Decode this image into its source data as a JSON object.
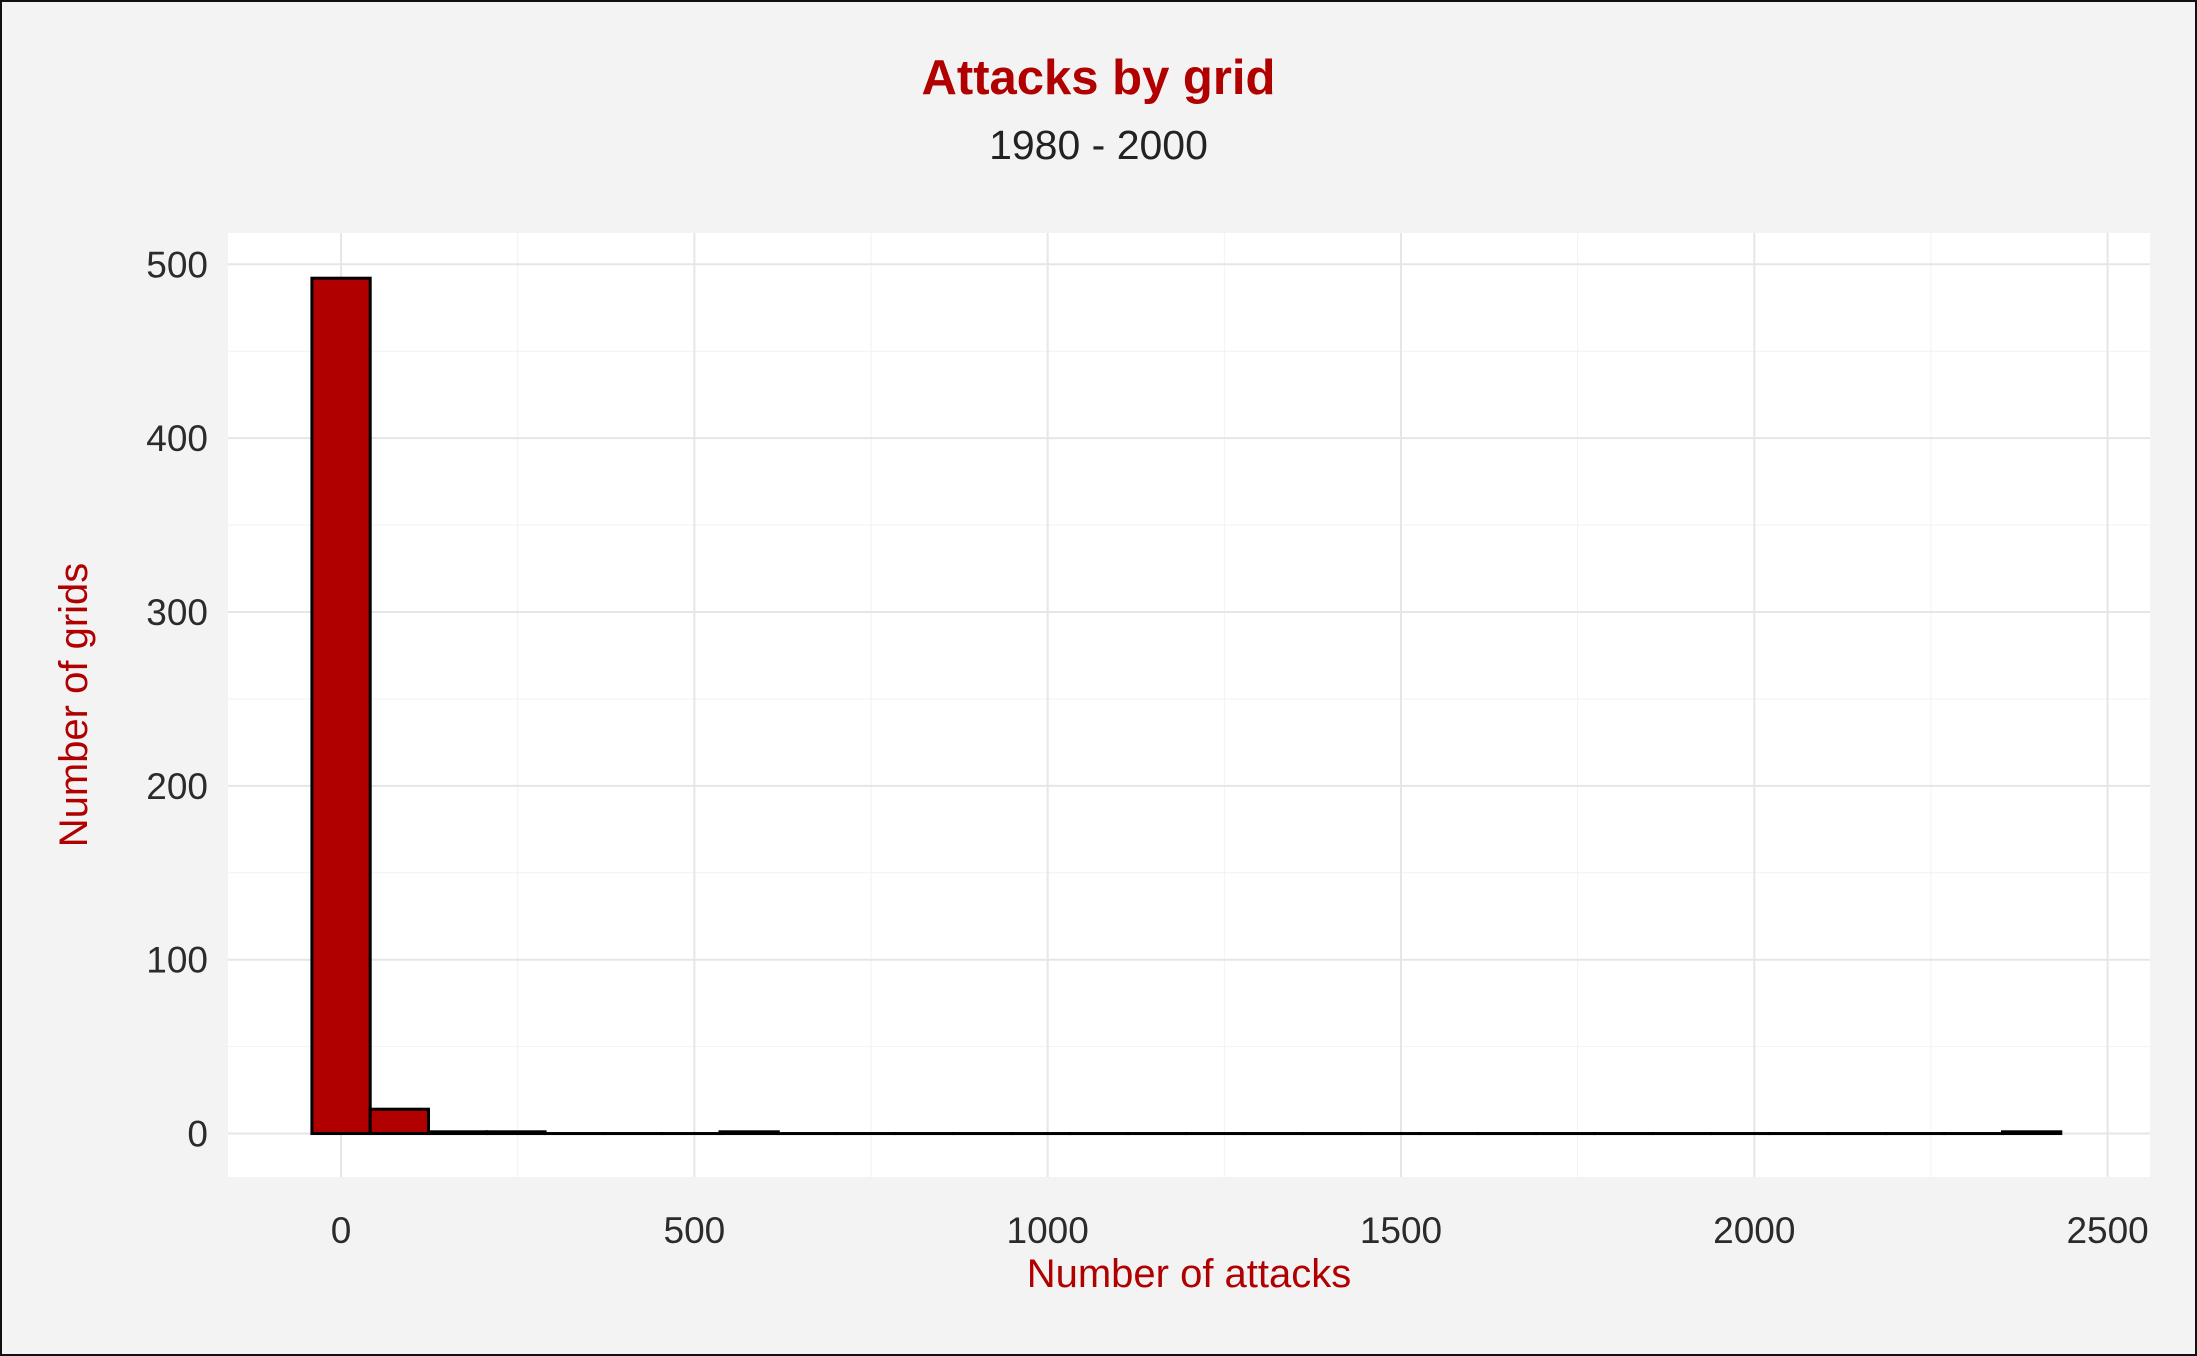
{
  "chart_data": {
    "type": "histogram",
    "title": "Attacks by grid",
    "subtitle": "1980 - 2000",
    "xlabel": "Number of attacks",
    "ylabel": "Number of grids",
    "xlim": [
      -160,
      2560
    ],
    "ylim": [
      -25,
      518
    ],
    "x_ticks": [
      0,
      500,
      1000,
      1500,
      2000,
      2500
    ],
    "y_ticks": [
      0,
      100,
      200,
      300,
      400,
      500
    ],
    "grid": true,
    "bin_width": 82.5,
    "bins_start": -41.25,
    "counts": [
      492,
      14,
      1,
      1,
      0,
      0,
      0,
      1,
      0,
      0,
      0,
      0,
      0,
      0,
      0,
      0,
      0,
      0,
      0,
      0,
      0,
      0,
      0,
      0,
      0,
      0,
      0,
      0,
      0,
      1
    ],
    "colors": {
      "bar_fill": "#b00000",
      "bar_edge": "#000000",
      "panel": "#ffffff",
      "background": "#f3f3f3",
      "grid": "#e6e6e6"
    }
  }
}
